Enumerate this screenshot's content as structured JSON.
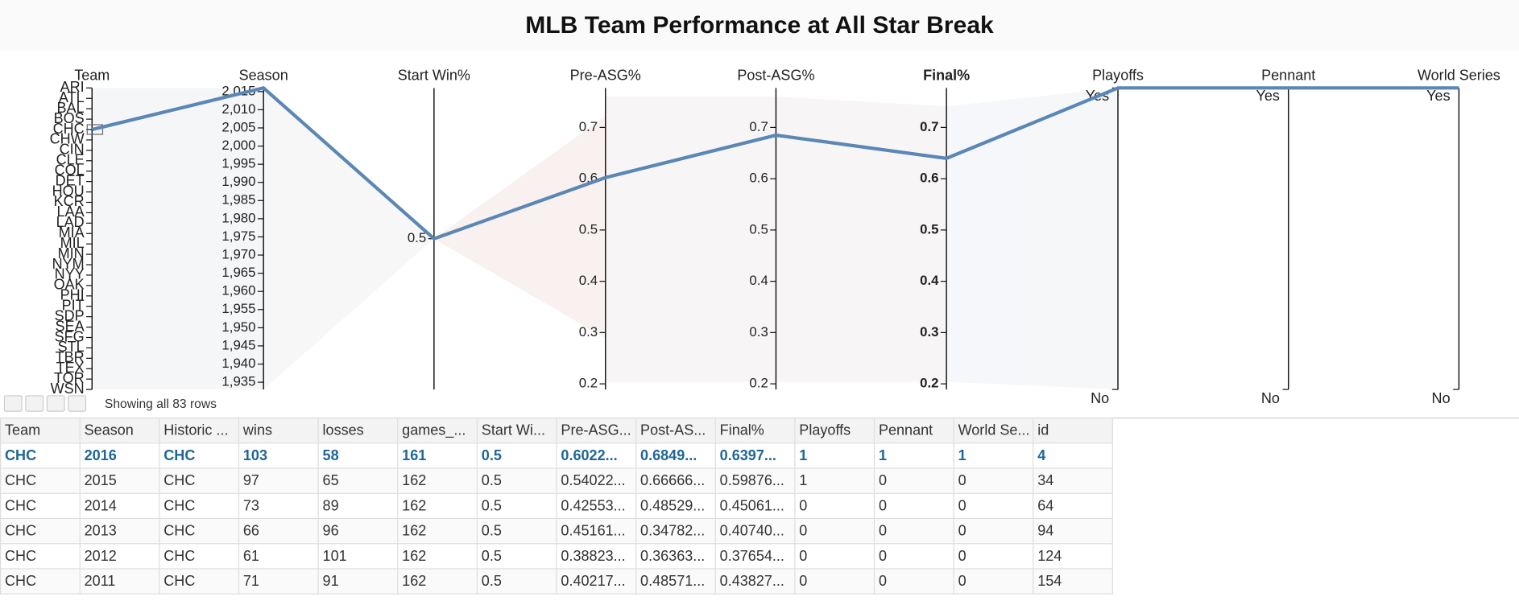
{
  "title": "MLB Team Performance at All Star Break",
  "parallel": {
    "axes": [
      {
        "name": "Team",
        "ticks": [
          "ARI",
          "ATL",
          "BAL",
          "BOS",
          "CHC",
          "CHW",
          "CIN",
          "CLE",
          "COL",
          "DET",
          "HOU",
          "KCR",
          "LAA",
          "LAD",
          "MIA",
          "MIL",
          "MIN",
          "NYM",
          "NYY",
          "OAK",
          "PHI",
          "PIT",
          "SDP",
          "SEA",
          "SFG",
          "STL",
          "TBR",
          "TEX",
          "TOR",
          "WSN"
        ]
      },
      {
        "name": "Season",
        "lim": [
          1933,
          2016
        ],
        "ticks": [
          {
            "value": 2015,
            "label": "2,015"
          },
          {
            "value": 2010,
            "label": "2,010"
          },
          {
            "value": 2005,
            "label": "2,005"
          },
          {
            "value": 2000,
            "label": "2,000"
          },
          {
            "value": 1995,
            "label": "1,995"
          },
          {
            "value": 1990,
            "label": "1,990"
          },
          {
            "value": 1985,
            "label": "1,985"
          },
          {
            "value": 1980,
            "label": "1,980"
          },
          {
            "value": 1975,
            "label": "1,975"
          },
          {
            "value": 1970,
            "label": "1,970"
          },
          {
            "value": 1965,
            "label": "1,965"
          },
          {
            "value": 1960,
            "label": "1,960"
          },
          {
            "value": 1955,
            "label": "1,955"
          },
          {
            "value": 1950,
            "label": "1,950"
          },
          {
            "value": 1945,
            "label": "1,945"
          },
          {
            "value": 1940,
            "label": "1,940"
          },
          {
            "value": 1935,
            "label": "1,935"
          }
        ]
      },
      {
        "name": "Start Win%",
        "lim": [
          0.4,
          0.6
        ],
        "ticks": [
          0.5
        ]
      },
      {
        "name": "Pre-ASG%",
        "lim": [
          0.189,
          0.777
        ],
        "ticks": [
          0.7,
          0.6,
          0.5,
          0.4,
          0.3,
          0.2
        ]
      },
      {
        "name": "Post-ASG%",
        "lim": [
          0.189,
          0.777
        ],
        "ticks": [
          0.7,
          0.6,
          0.5,
          0.4,
          0.3,
          0.2
        ]
      },
      {
        "name": "Final%",
        "lim": [
          0.189,
          0.777
        ],
        "ticks": [
          0.7,
          0.6,
          0.5,
          0.4,
          0.3,
          0.2
        ],
        "emphasized": true
      },
      {
        "name": "Playoffs",
        "ticks": [
          "No",
          "Yes"
        ]
      },
      {
        "name": "Pennant",
        "ticks": [
          "No",
          "Yes"
        ]
      },
      {
        "name": "World Series",
        "ticks": [
          "No",
          "Yes"
        ]
      }
    ],
    "selected": [
      "CHC",
      2016,
      0.5,
      0.6022,
      0.6849,
      0.6397,
      1,
      1,
      1
    ],
    "selected_color": "#5b87b5"
  },
  "pager": {
    "status": "Showing all 83 rows"
  },
  "table": {
    "columns": [
      "Team",
      "Season",
      "Historic ...",
      "wins",
      "losses",
      "games_...",
      "Start Wi...",
      "Pre-ASG...",
      "Post-AS...",
      "Final%",
      "Playoffs",
      "Pennant",
      "World Se...",
      "id"
    ],
    "rows": [
      [
        "CHC",
        "2016",
        "CHC",
        "103",
        "58",
        "161",
        "0.5",
        "0.6022...",
        "0.6849...",
        "0.6397...",
        "1",
        "1",
        "1",
        "4"
      ],
      [
        "CHC",
        "2015",
        "CHC",
        "97",
        "65",
        "162",
        "0.5",
        "0.54022...",
        "0.66666...",
        "0.59876...",
        "1",
        "0",
        "0",
        "34"
      ],
      [
        "CHC",
        "2014",
        "CHC",
        "73",
        "89",
        "162",
        "0.5",
        "0.42553...",
        "0.48529...",
        "0.45061...",
        "0",
        "0",
        "0",
        "64"
      ],
      [
        "CHC",
        "2013",
        "CHC",
        "66",
        "96",
        "162",
        "0.5",
        "0.45161...",
        "0.34782...",
        "0.40740...",
        "0",
        "0",
        "0",
        "94"
      ],
      [
        "CHC",
        "2012",
        "CHC",
        "61",
        "101",
        "162",
        "0.5",
        "0.38823...",
        "0.36363...",
        "0.37654...",
        "0",
        "0",
        "0",
        "124"
      ],
      [
        "CHC",
        "2011",
        "CHC",
        "71",
        "91",
        "162",
        "0.5",
        "0.40217...",
        "0.48571...",
        "0.43827...",
        "0",
        "0",
        "0",
        "154"
      ]
    ],
    "selected_row": 0
  }
}
